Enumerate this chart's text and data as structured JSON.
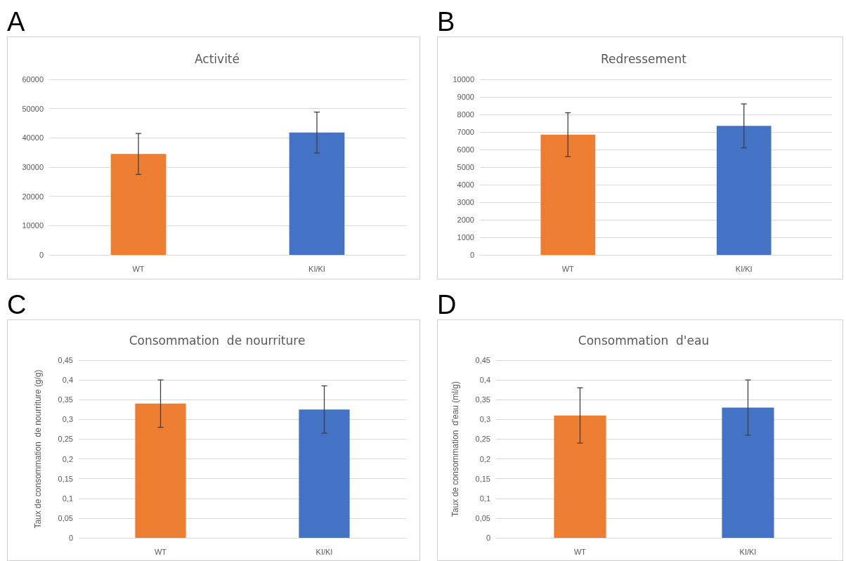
{
  "chart_data": [
    {
      "type": "bar",
      "title": "Activité",
      "annotations": [
        "A"
      ],
      "categories": [
        "WT",
        "KI/KI"
      ],
      "values": [
        34500,
        41800
      ],
      "errors": [
        7000,
        7000
      ],
      "colors": [
        "#ed7d31",
        "#4472c4"
      ],
      "ylim": [
        0,
        60000
      ],
      "yticks": [
        0,
        10000,
        20000,
        30000,
        40000,
        50000,
        60000
      ],
      "grid": "y"
    },
    {
      "type": "bar",
      "title": "Redressement",
      "annotations": [
        "B"
      ],
      "categories": [
        "WT",
        "KI/KI"
      ],
      "values": [
        6850,
        7350
      ],
      "errors": [
        1250,
        1250
      ],
      "colors": [
        "#ed7d31",
        "#4472c4"
      ],
      "ylim": [
        0,
        10000
      ],
      "yticks": [
        0,
        1000,
        2000,
        3000,
        4000,
        5000,
        6000,
        7000,
        8000,
        9000,
        10000
      ],
      "grid": "y"
    },
    {
      "type": "bar",
      "title": "Consommation  de nourriture",
      "ylabel": "Taux de consommation  de nourriture (g/g)",
      "annotations": [
        "C"
      ],
      "categories": [
        "WT",
        "KI/KI"
      ],
      "values": [
        0.34,
        0.325
      ],
      "errors": [
        0.06,
        0.06
      ],
      "colors": [
        "#ed7d31",
        "#4472c4"
      ],
      "ylim": [
        0,
        0.45
      ],
      "yticks": [
        0,
        {
          "value": 0.05,
          "label": "0,05"
        },
        {
          "value": 0.1,
          "label": "0,1"
        },
        {
          "value": 0.15,
          "label": "0,15"
        },
        {
          "value": 0.2,
          "label": "0,2"
        },
        {
          "value": 0.25,
          "label": "0,25"
        },
        {
          "value": 0.3,
          "label": "0,3"
        },
        {
          "value": 0.35,
          "label": "0,35"
        },
        {
          "value": 0.4,
          "label": "0,4"
        },
        {
          "value": 0.45,
          "label": "0,45"
        }
      ],
      "grid": "y"
    },
    {
      "type": "bar",
      "title": "Consommation  d'eau",
      "ylabel": "Taux de consommation  d'eau (ml/g)",
      "annotations": [
        "D"
      ],
      "categories": [
        "WT",
        "KI/KI"
      ],
      "values": [
        0.31,
        0.33
      ],
      "errors": [
        0.07,
        0.07
      ],
      "colors": [
        "#ed7d31",
        "#4472c4"
      ],
      "ylim": [
        0,
        0.45
      ],
      "yticks": [
        0,
        {
          "value": 0.05,
          "label": "0,05"
        },
        {
          "value": 0.1,
          "label": "0,1"
        },
        {
          "value": 0.15,
          "label": "0,15"
        },
        {
          "value": 0.2,
          "label": "0,2"
        },
        {
          "value": 0.25,
          "label": "0,25"
        },
        {
          "value": 0.3,
          "label": "0,3"
        },
        {
          "value": 0.35,
          "label": "0,35"
        },
        {
          "value": 0.4,
          "label": "0,4"
        },
        {
          "value": 0.45,
          "label": "0,45"
        }
      ],
      "grid": "y"
    }
  ]
}
